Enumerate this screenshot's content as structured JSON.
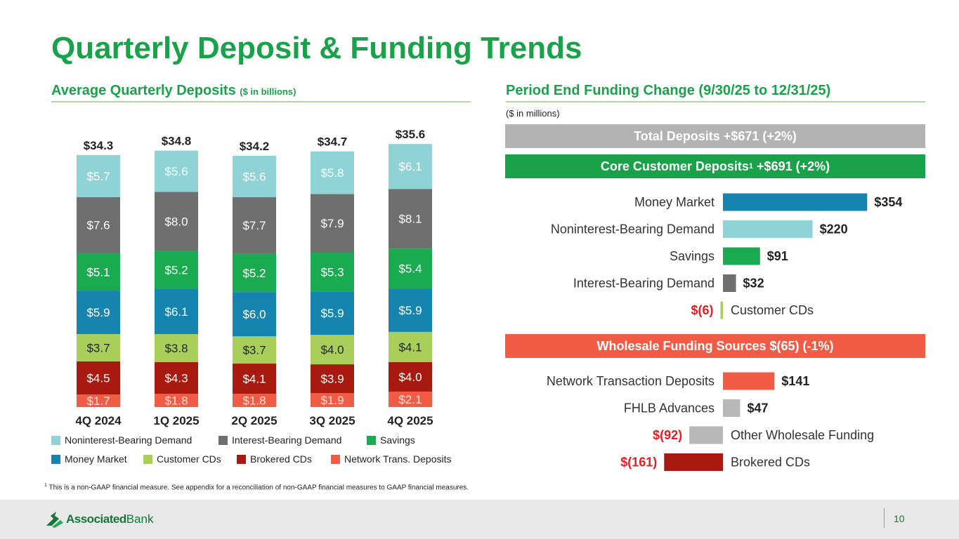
{
  "title": "Quarterly Deposit & Funding Trends",
  "left": {
    "heading": "Average Quarterly Deposits",
    "heading_units": "($ in billions)"
  },
  "right": {
    "heading": "Period End Funding Change (9/30/25 to 12/31/25)",
    "units": "($ in millions)",
    "total_band": "Total Deposits +$671 (+2%)",
    "core_band_prefix": "Core Customer Deposits",
    "core_band_sup": "1",
    "core_band_suffix": " +$691 (+2%)",
    "wholesale_band": "Wholesale Funding Sources $(65) (-1%)"
  },
  "colors": {
    "title_green": "#1aa24a",
    "noninterest_bearing_demand": "#8fd3d6",
    "interest_bearing_demand": "#6f6f6f",
    "savings": "#1aaa4f",
    "money_market": "#1585b0",
    "customer_cds": "#a9cf5a",
    "brokered_cds": "#a8190f",
    "network_trans_deposits": "#f25c45",
    "total_band": "#b3b3b3",
    "core_band": "#1aa24a",
    "wholesale_band": "#f25c45",
    "negative_label": "#e02020"
  },
  "chart_data": [
    {
      "type": "bar",
      "stacked": true,
      "categories": [
        "4Q 2024",
        "1Q 2025",
        "2Q 2025",
        "3Q 2025",
        "4Q 2025"
      ],
      "totals": [
        "$34.3",
        "$34.8",
        "$34.2",
        "$34.7",
        "$35.6"
      ],
      "total_values": [
        34.3,
        34.8,
        34.2,
        34.7,
        35.6
      ],
      "series": [
        {
          "name": "Network Trans. Deposits",
          "key": "network_trans_deposits",
          "values": [
            1.7,
            1.8,
            1.8,
            1.9,
            2.1
          ],
          "labels": [
            "$1.7",
            "$1.8",
            "$1.8",
            "$1.9",
            "$2.1"
          ]
        },
        {
          "name": "Brokered CDs",
          "key": "brokered_cds",
          "values": [
            4.5,
            4.3,
            4.1,
            3.9,
            4.0
          ],
          "labels": [
            "$4.5",
            "$4.3",
            "$4.1",
            "$3.9",
            "$4.0"
          ]
        },
        {
          "name": "Customer CDs",
          "key": "customer_cds",
          "values": [
            3.7,
            3.8,
            3.7,
            4.0,
            4.1
          ],
          "labels": [
            "$3.7",
            "$3.8",
            "$3.7",
            "$4.0",
            "$4.1"
          ]
        },
        {
          "name": "Money Market",
          "key": "money_market",
          "values": [
            5.9,
            6.1,
            6.0,
            5.9,
            5.9
          ],
          "labels": [
            "$5.9",
            "$6.1",
            "$6.0",
            "$5.9",
            "$5.9"
          ]
        },
        {
          "name": "Savings",
          "key": "savings",
          "values": [
            5.1,
            5.2,
            5.2,
            5.3,
            5.4
          ],
          "labels": [
            "$5.1",
            "$5.2",
            "$5.2",
            "$5.3",
            "$5.4"
          ]
        },
        {
          "name": "Interest-Bearing Demand",
          "key": "interest_bearing_demand",
          "values": [
            7.6,
            8.0,
            7.7,
            7.9,
            8.1
          ],
          "labels": [
            "$7.6",
            "$8.0",
            "$7.7",
            "$7.9",
            "$8.1"
          ]
        },
        {
          "name": "Noninterest-Bearing Demand",
          "key": "noninterest_bearing_demand",
          "values": [
            5.7,
            5.6,
            5.6,
            5.8,
            6.1
          ],
          "labels": [
            "$5.7",
            "$5.6",
            "$5.6",
            "$5.8",
            "$6.1"
          ]
        }
      ],
      "legend_rows": [
        [
          "Noninterest-Bearing Demand",
          "Interest-Bearing Demand",
          "Savings"
        ],
        [
          "Money Market",
          "Customer CDs",
          "Brokered CDs",
          "Network Trans. Deposits"
        ]
      ],
      "legend_placement": "bottom",
      "grid": false
    },
    {
      "type": "bar",
      "orientation": "horizontal",
      "group": "Core Customer Deposits",
      "categories": [
        "Money Market",
        "Noninterest-Bearing Demand",
        "Savings",
        "Interest-Bearing Demand",
        "Customer CDs"
      ],
      "values": [
        354,
        220,
        91,
        32,
        -6
      ],
      "labels": [
        "$354",
        "$220",
        "$91",
        "$32",
        "$(6)"
      ],
      "colors": [
        "money_market",
        "noninterest_bearing_demand",
        "savings",
        "interest_bearing_demand",
        "customer_cds"
      ]
    },
    {
      "type": "bar",
      "orientation": "horizontal",
      "group": "Wholesale Funding Sources",
      "categories": [
        "Network Transaction Deposits",
        "FHLB Advances",
        "Other Wholesale Funding",
        "Brokered CDs"
      ],
      "values": [
        141,
        47,
        -92,
        -161
      ],
      "labels": [
        "$141",
        "$47",
        "$(92)",
        "$(161)"
      ],
      "colors": [
        "network_trans_deposits",
        "#b8b8b8",
        "#b8b8b8",
        "brokered_cds"
      ]
    }
  ],
  "footnote_sup": "1",
  "footnote": "This is a non-GAAP financial measure. See appendix for a reconciliation of non-GAAP financial measures to GAAP financial measures.",
  "logo": {
    "bold": "Associated",
    "light": "Bank"
  },
  "page_number": "10"
}
